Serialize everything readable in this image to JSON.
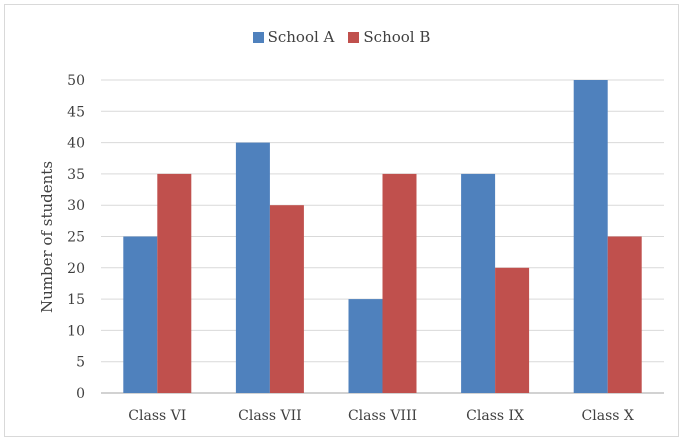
{
  "chart_data": {
    "type": "bar",
    "title": "",
    "xlabel": "",
    "ylabel": "Number of students",
    "categories": [
      "Class VI",
      "Class VII",
      "Class VIII",
      "Class IX",
      "Class X"
    ],
    "series": [
      {
        "name": "School A",
        "color": "#4f81bd",
        "values": [
          25,
          40,
          15,
          35,
          50
        ]
      },
      {
        "name": "School B",
        "color": "#c0504d",
        "values": [
          35,
          30,
          35,
          20,
          25
        ]
      }
    ],
    "ylim": [
      0,
      50
    ],
    "yticks": [
      "0",
      "5",
      "10",
      "15",
      "20",
      "25",
      "30",
      "35",
      "40",
      "45",
      "50"
    ],
    "grid": true,
    "legend": "top-center"
  }
}
